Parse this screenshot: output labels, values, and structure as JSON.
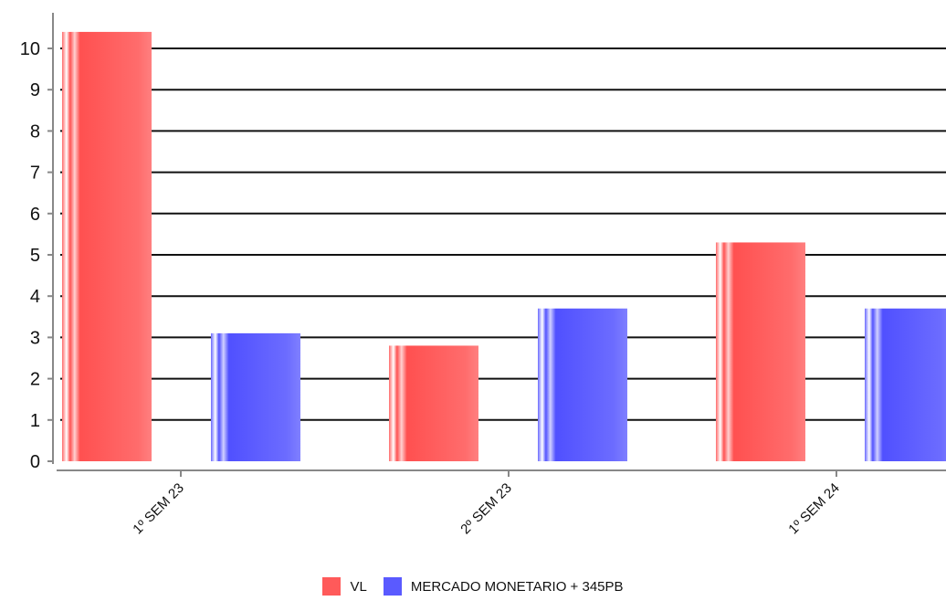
{
  "chart_data": {
    "type": "bar",
    "categories": [
      "1º SEM 23",
      "2º SEM 23",
      "1º SEM 24"
    ],
    "series": [
      {
        "name": "VL",
        "color": "#ff5a5a",
        "values": [
          10.4,
          2.8,
          5.3
        ]
      },
      {
        "name": "MERCADO MONETARIO + 345PB",
        "color": "#5a5aff",
        "values": [
          3.1,
          3.7,
          3.7
        ]
      }
    ],
    "yticks": [
      "0",
      "1",
      "2",
      "3",
      "4",
      "5",
      "6",
      "7",
      "8",
      "9",
      "10"
    ],
    "ylim": [
      0,
      10.4
    ],
    "grid": true,
    "legend_position": "bottom"
  }
}
